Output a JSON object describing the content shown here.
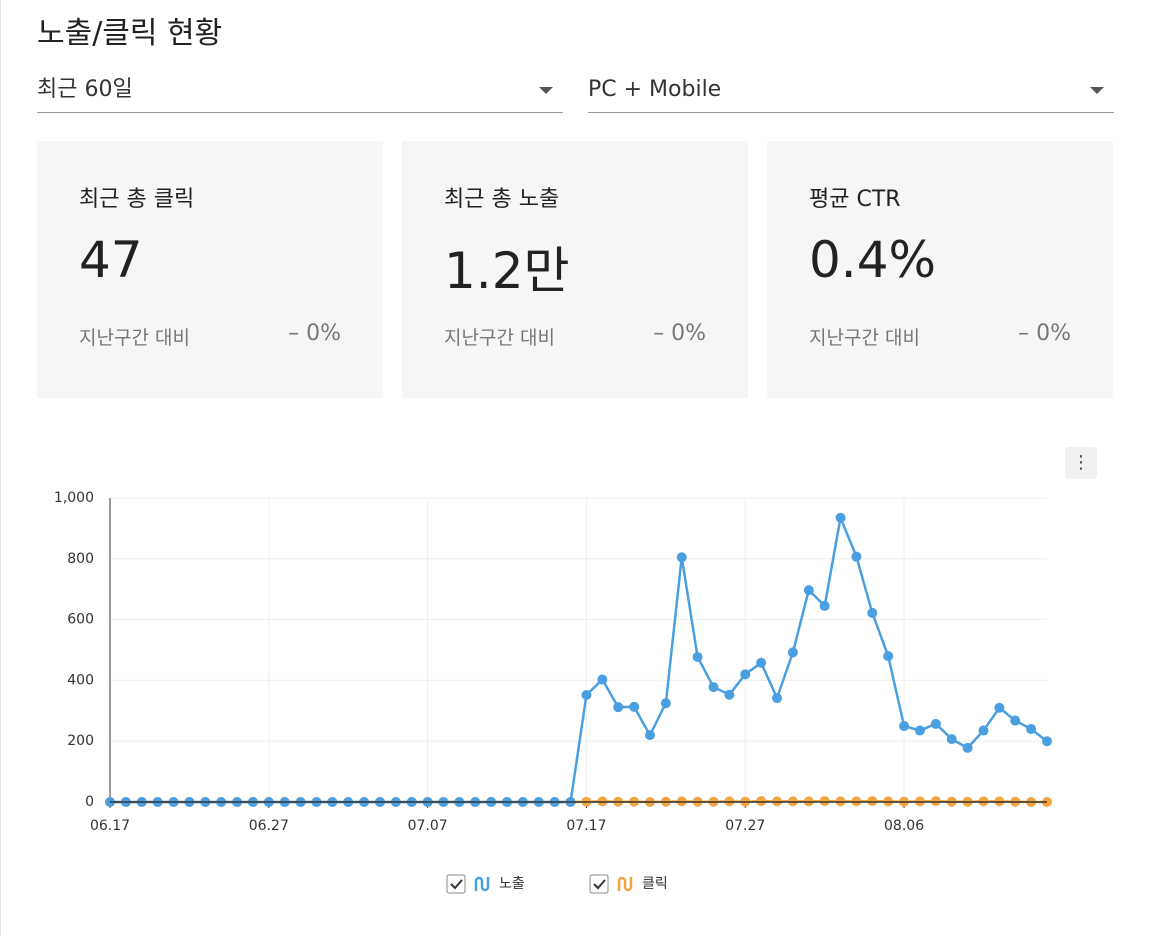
{
  "header": {
    "title": "노출/클릭 현황"
  },
  "filters": [
    "최근 60일",
    "PC + Mobile"
  ],
  "cards": [
    {
      "label": "최근 총 클릭",
      "value": "47",
      "compare_label": "지난구간 대비",
      "change": "– 0%"
    },
    {
      "label": "최근 총 노출",
      "value": "1.2만",
      "compare_label": "지난구간 대비",
      "change": "– 0%"
    },
    {
      "label": "평균 CTR",
      "value": "0.4%",
      "compare_label": "지난구간 대비",
      "change": "– 0%"
    }
  ],
  "chart": {
    "type": "line",
    "x": [
      "06.17",
      null,
      null,
      null,
      null,
      null,
      null,
      null,
      null,
      null,
      "06.27",
      null,
      null,
      null,
      null,
      null,
      null,
      null,
      null,
      null,
      "07.07",
      null,
      null,
      null,
      null,
      null,
      null,
      null,
      null,
      null,
      "07.17",
      null,
      null,
      null,
      null,
      null,
      null,
      null,
      null,
      null,
      "07.27",
      null,
      null,
      null,
      null,
      null,
      null,
      null,
      null,
      null,
      "08.06",
      null,
      null,
      null,
      null,
      null,
      null,
      null,
      null,
      null
    ],
    "series": [
      {
        "name": "노출",
        "color": "#4a9fe0",
        "values": [
          0,
          0,
          0,
          0,
          0,
          0,
          0,
          0,
          0,
          0,
          0,
          0,
          0,
          0,
          0,
          0,
          0,
          0,
          0,
          0,
          0,
          0,
          0,
          0,
          0,
          0,
          0,
          0,
          0,
          0,
          352,
          403,
          312,
          313,
          220,
          325,
          805,
          477,
          378,
          353,
          420,
          458,
          342,
          492,
          697,
          645,
          935,
          807,
          622,
          480,
          250,
          235,
          257,
          207,
          178,
          235,
          310,
          268,
          240,
          200
        ]
      },
      {
        "name": "클릭",
        "color": "#f2a540",
        "values": [
          0,
          0,
          0,
          0,
          0,
          0,
          0,
          0,
          0,
          0,
          0,
          0,
          0,
          0,
          0,
          0,
          0,
          0,
          0,
          0,
          0,
          0,
          0,
          0,
          0,
          0,
          0,
          0,
          0,
          0,
          1,
          2,
          1,
          1,
          0,
          1,
          2,
          1,
          1,
          2,
          1,
          3,
          2,
          2,
          2,
          3,
          2,
          2,
          3,
          2,
          1,
          2,
          3,
          1,
          1,
          2,
          2,
          1,
          0,
          0
        ]
      }
    ],
    "ylim": [
      0,
      1000
    ],
    "yticks": [
      0,
      200,
      400,
      600,
      800,
      {
        "value": 1000,
        "label": "1,000"
      }
    ],
    "grid": true
  }
}
